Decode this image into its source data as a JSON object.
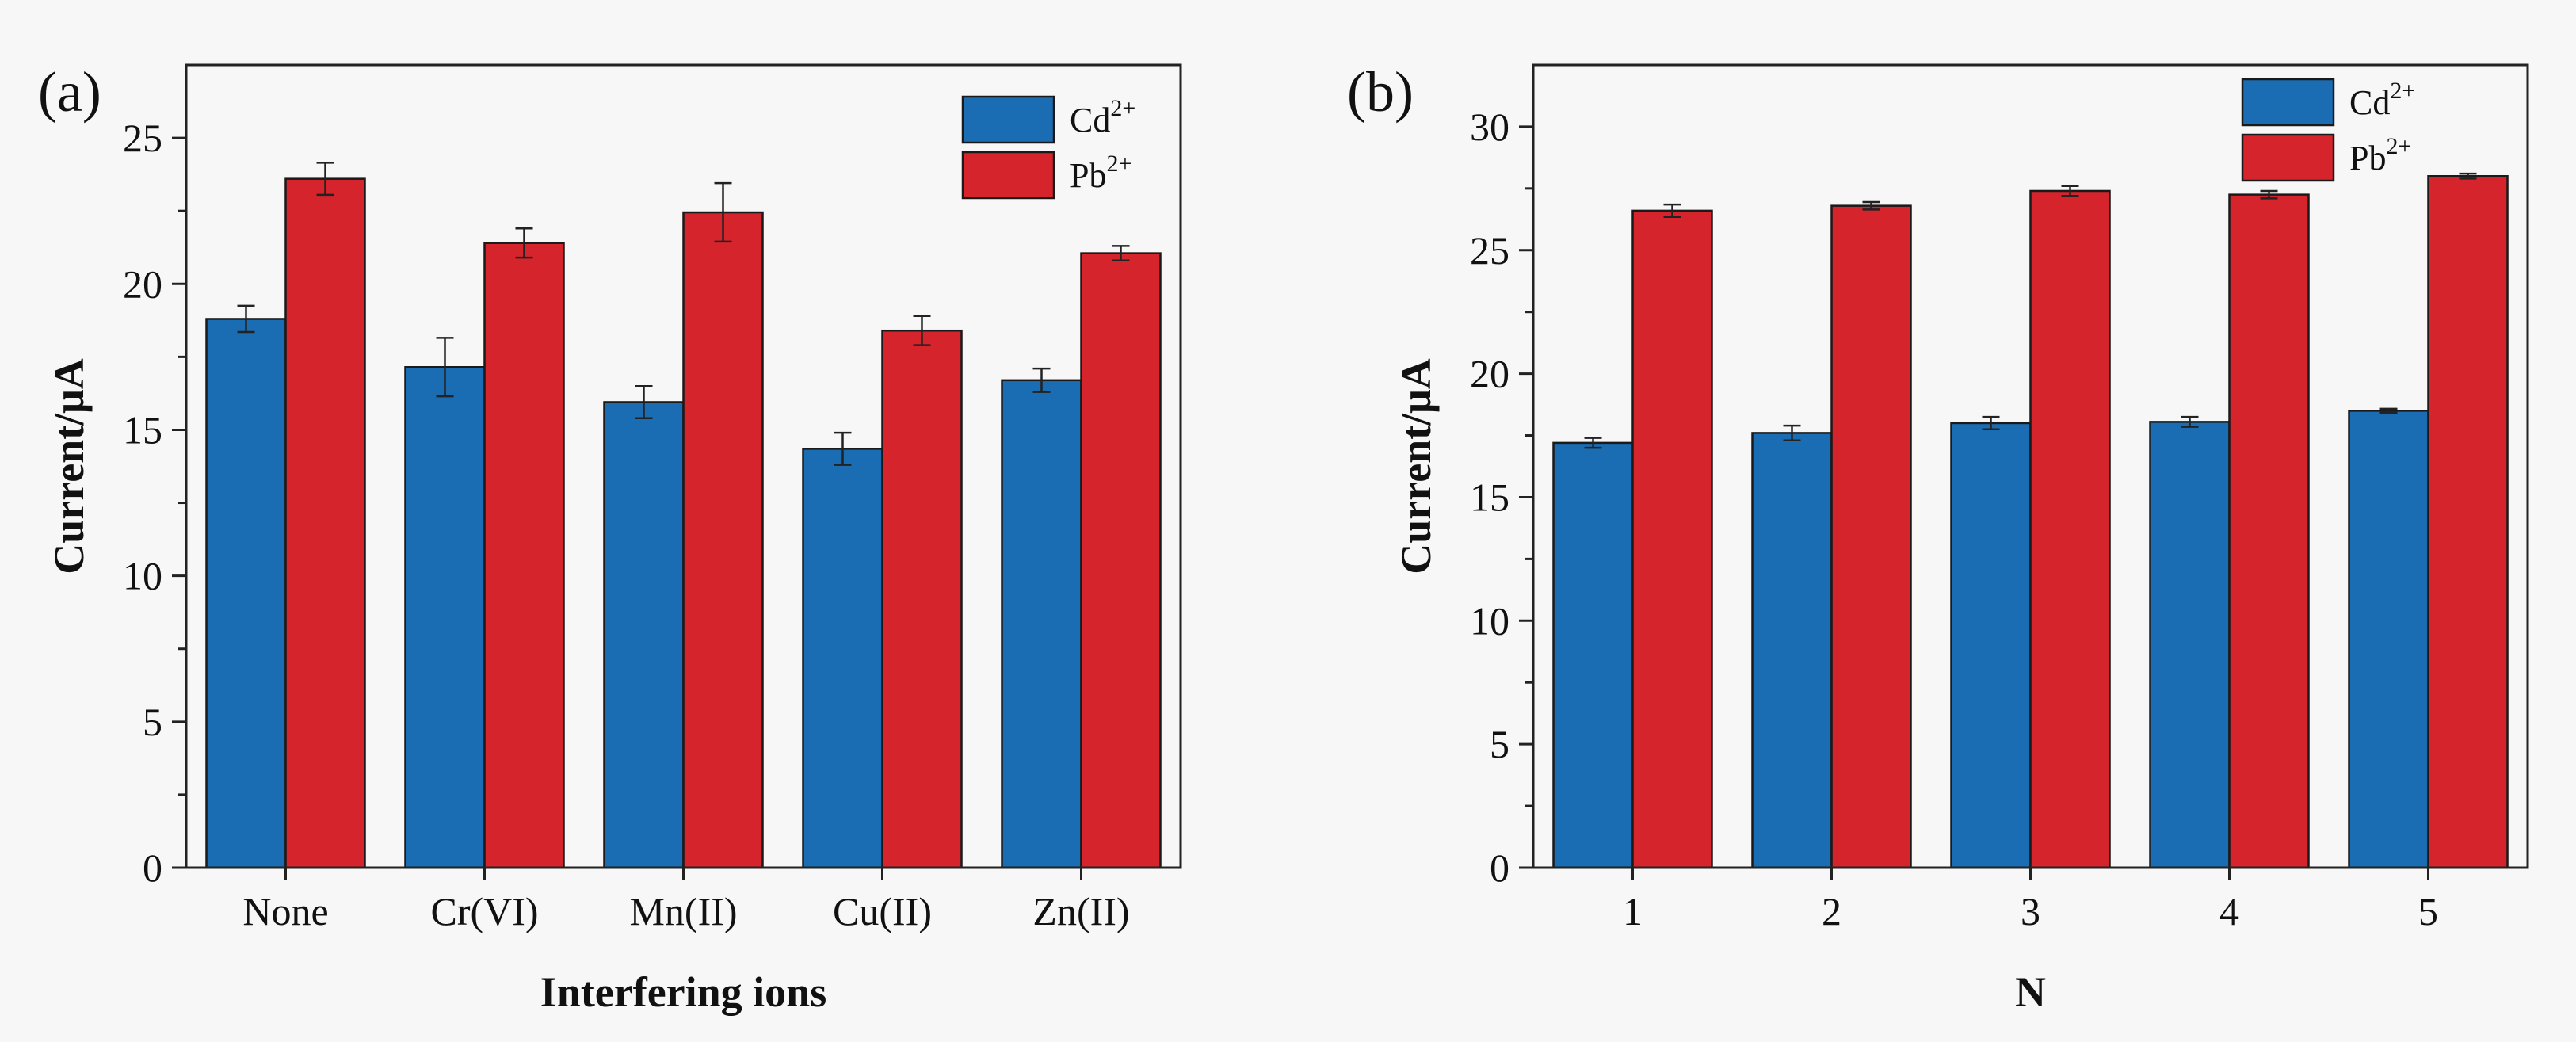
{
  "chart_data": [
    {
      "type": "bar",
      "panel_label": "(a)",
      "title": "",
      "xlabel": "Interfering ions",
      "ylabel": "Current/μA",
      "ylim": [
        0,
        27.5
      ],
      "yticks": [
        0,
        5,
        10,
        15,
        20,
        25
      ],
      "legend_position": "top-right",
      "categories": [
        "None",
        "Cr(VI)",
        "Mn(II)",
        "Cu(II)",
        "Zn(II)"
      ],
      "series": [
        {
          "name": "Cd",
          "superscript": "2+",
          "color": "#1a6db3",
          "values": [
            18.8,
            17.15,
            15.95,
            14.35,
            16.7
          ],
          "errors": [
            0.45,
            1.0,
            0.55,
            0.55,
            0.4
          ]
        },
        {
          "name": "Pb",
          "superscript": "2+",
          "color": "#d5242c",
          "values": [
            23.6,
            21.4,
            22.45,
            18.4,
            21.05
          ],
          "errors": [
            0.55,
            0.5,
            1.0,
            0.5,
            0.25
          ]
        }
      ]
    },
    {
      "type": "bar",
      "panel_label": "(b)",
      "title": "",
      "xlabel": "N",
      "ylabel": "Current/μA",
      "ylim": [
        0,
        32.5
      ],
      "yticks": [
        0,
        5,
        10,
        15,
        20,
        25,
        30
      ],
      "legend_position": "top-right",
      "categories": [
        "1",
        "2",
        "3",
        "4",
        "5"
      ],
      "series": [
        {
          "name": "Cd",
          "superscript": "2+",
          "color": "#1a6db3",
          "values": [
            17.2,
            17.6,
            18.0,
            18.05,
            18.5
          ],
          "errors": [
            0.2,
            0.3,
            0.25,
            0.2,
            0.08
          ]
        },
        {
          "name": "Pb",
          "superscript": "2+",
          "color": "#d5242c",
          "values": [
            26.6,
            26.8,
            27.4,
            27.25,
            28.0
          ],
          "errors": [
            0.25,
            0.15,
            0.2,
            0.15,
            0.1
          ]
        }
      ]
    }
  ]
}
